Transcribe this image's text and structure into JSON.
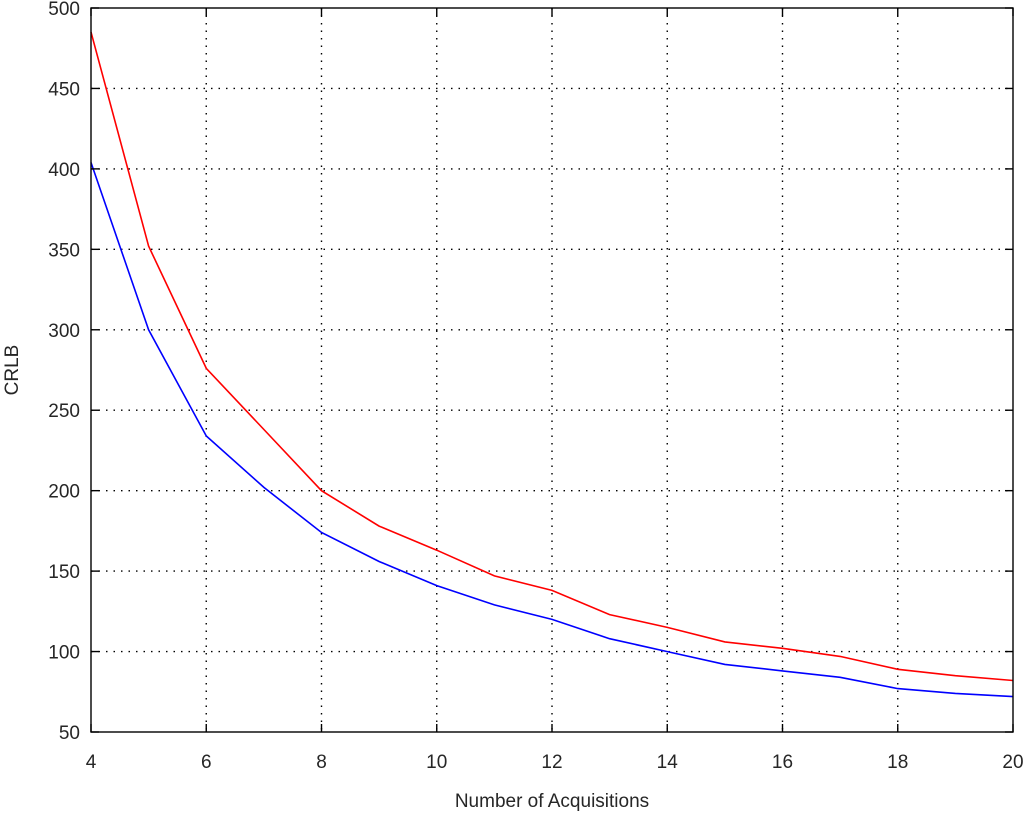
{
  "chart_data": {
    "type": "line",
    "title": "",
    "xlabel": "Number of Acquisitions",
    "ylabel": "CRLB",
    "xlim": [
      4,
      20
    ],
    "ylim": [
      50,
      500
    ],
    "xticks": [
      4,
      6,
      8,
      10,
      12,
      14,
      16,
      18,
      20
    ],
    "yticks": [
      50,
      100,
      150,
      200,
      250,
      300,
      350,
      400,
      450,
      500
    ],
    "grid": true,
    "legend": "none",
    "x": [
      4,
      5,
      6,
      7,
      8,
      9,
      10,
      11,
      12,
      13,
      14,
      15,
      16,
      17,
      18,
      19,
      20
    ],
    "series": [
      {
        "color": "#ff0000",
        "values": [
          485,
          352,
          276,
          238,
          200,
          178,
          163,
          147,
          138,
          123,
          115,
          106,
          102,
          97,
          89,
          85,
          82
        ]
      },
      {
        "color": "#0000ff",
        "values": [
          404,
          300,
          234,
          202,
          174,
          156,
          141,
          129,
          120,
          108,
          100,
          92,
          88,
          84,
          77,
          74,
          72
        ]
      }
    ]
  }
}
